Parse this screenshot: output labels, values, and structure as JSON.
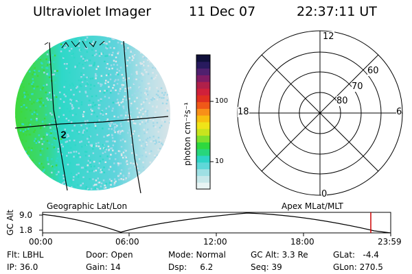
{
  "header": {
    "instrument": "Ultraviolet Imager",
    "date": "11 Dec 07",
    "time": "22:37:11 UT"
  },
  "colorbar": {
    "unit_label": "photon cm⁻²s⁻¹",
    "ticks": [
      "100",
      "10"
    ],
    "colors": [
      "#e8f4f4",
      "#c8e8ea",
      "#9fe0e4",
      "#5fd8d8",
      "#2ed4c6",
      "#27d67c",
      "#2ed83e",
      "#7ee02e",
      "#c8e41e",
      "#f0e418",
      "#f8c010",
      "#f89018",
      "#f05818",
      "#e03020",
      "#d0203a",
      "#b0204a",
      "#801c64",
      "#50206e",
      "#281a5e",
      "#10103a"
    ]
  },
  "globe": {
    "grid_label": "Geographic Lat/Lon",
    "marker": "ϩ",
    "palette": {
      "green": "#3ed83c",
      "cyan": "#2ed8c8",
      "lightblue": "#9fd8e8",
      "gray": "#dde6ea"
    }
  },
  "polar": {
    "grid_label": "Apex MLat/MLT",
    "mlt_labels": {
      "top": "12",
      "bottom": "0",
      "left": "18",
      "right": "6"
    },
    "mlat_labels": [
      "60",
      "70",
      "80"
    ]
  },
  "orbit": {
    "ylabel": "GC Alt",
    "yticks": [
      "9.0",
      "1.8"
    ],
    "xticks": [
      "00:00",
      "06:00",
      "12:00",
      "18:00",
      "23:59"
    ],
    "current_marker_color": "#cc0000"
  },
  "info": {
    "flt": "Flt: LBHL",
    "ip": "IP: 36.0",
    "door": "Door: Open",
    "gain": "Gain: 14",
    "mode": "Mode: Normal",
    "dsp": "Dsp:     6.2",
    "gc_alt": "GC Alt: 3.3 Re",
    "seq": "Seq: 39",
    "glat": "GLat:   -4.4",
    "glon": "GLon: 270.5"
  }
}
